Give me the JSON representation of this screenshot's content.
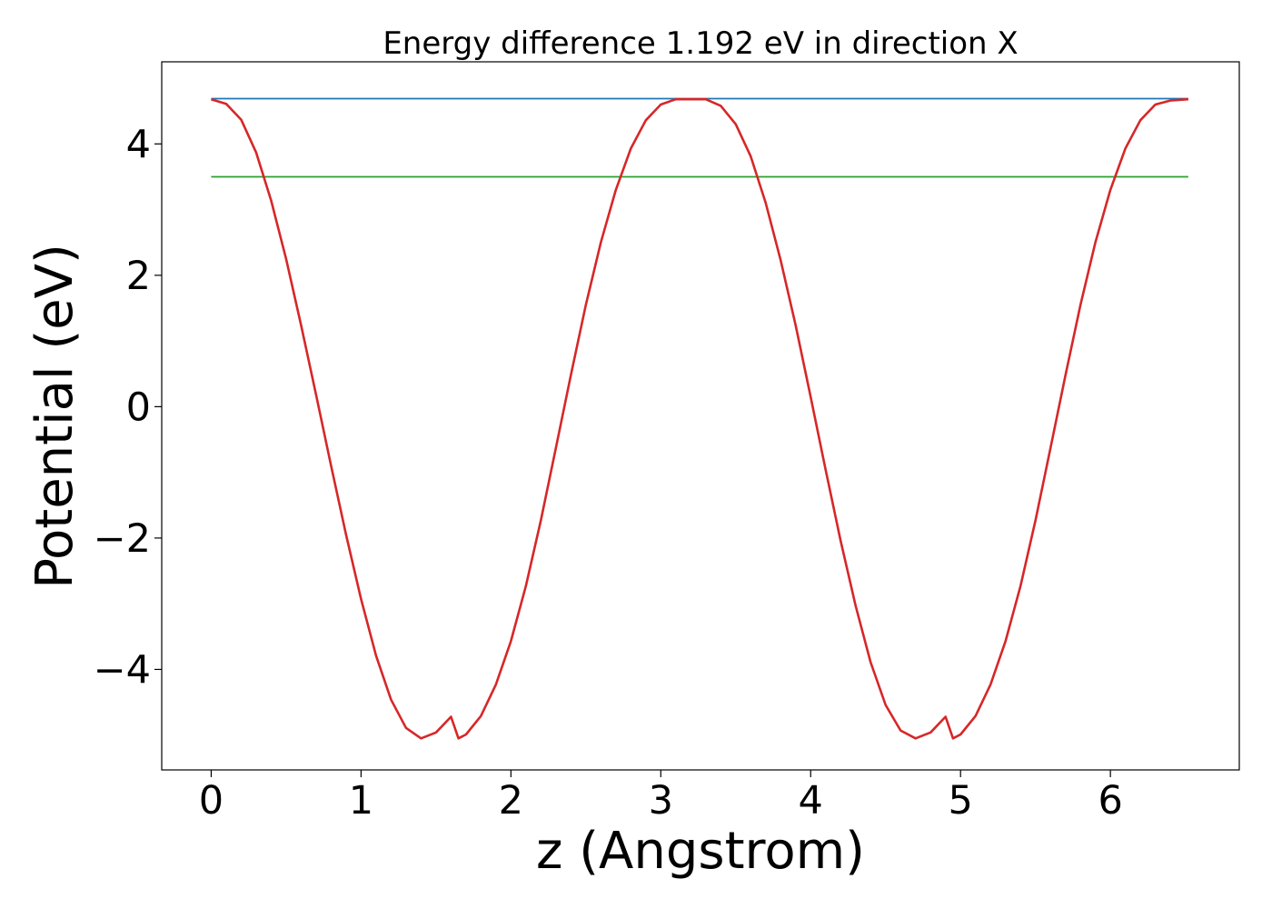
{
  "chart_data": {
    "type": "line",
    "title": "Energy difference 1.192 eV in direction X",
    "xlabel": "z (Angstrom)",
    "ylabel": "Potential (eV)",
    "xlim": [
      -0.33,
      6.86
    ],
    "ylim": [
      -5.53,
      5.25
    ],
    "xticks": [
      0,
      1,
      2,
      3,
      4,
      5,
      6
    ],
    "xtick_labels": [
      "0",
      "1",
      "2",
      "3",
      "4",
      "5",
      "6"
    ],
    "yticks": [
      -4,
      -2,
      0,
      2,
      4
    ],
    "ytick_labels": [
      "−4",
      "−2",
      "0",
      "2",
      "4"
    ],
    "grid": false,
    "series": [
      {
        "color": "#d62728",
        "x": [
          0,
          0.1,
          0.2,
          0.3,
          0.4,
          0.5,
          0.6,
          0.7,
          0.8,
          0.9,
          1.0,
          1.1,
          1.2,
          1.3,
          1.4,
          1.5,
          1.6,
          1.65,
          1.7,
          1.8,
          1.9,
          2.0,
          2.1,
          2.2,
          2.3,
          2.4,
          2.5,
          2.6,
          2.7,
          2.8,
          2.9,
          3.0,
          3.1,
          3.2,
          3.3,
          3.4,
          3.5,
          3.6,
          3.7,
          3.8,
          3.9,
          4.0,
          4.1,
          4.2,
          4.3,
          4.4,
          4.5,
          4.6,
          4.7,
          4.8,
          4.9,
          4.95,
          5.0,
          5.1,
          5.2,
          5.3,
          5.4,
          5.5,
          5.6,
          5.7,
          5.8,
          5.9,
          6.0,
          6.1,
          6.2,
          6.3,
          6.4,
          6.52
        ],
        "y": [
          4.68,
          4.61,
          4.37,
          3.87,
          3.14,
          2.25,
          1.24,
          0.18,
          -0.9,
          -1.95,
          -2.93,
          -3.79,
          -4.46,
          -4.89,
          -5.05,
          -4.96,
          -4.72,
          -5.05,
          -4.99,
          -4.71,
          -4.23,
          -3.57,
          -2.73,
          -1.73,
          -0.63,
          0.48,
          1.55,
          2.5,
          3.3,
          3.93,
          4.36,
          4.6,
          4.68,
          4.68,
          4.68,
          4.58,
          4.3,
          3.81,
          3.1,
          2.23,
          1.24,
          0.15,
          -0.96,
          -2.04,
          -3.03,
          -3.89,
          -4.54,
          -4.93,
          -5.05,
          -4.96,
          -4.72,
          -5.05,
          -4.99,
          -4.71,
          -4.23,
          -3.57,
          -2.73,
          -1.73,
          -0.63,
          0.48,
          1.55,
          2.5,
          3.3,
          3.93,
          4.36,
          4.6,
          4.66,
          4.68
        ]
      },
      {
        "color": "#1f77b4",
        "x": [
          0,
          6.52
        ],
        "y": [
          4.69,
          4.69
        ]
      },
      {
        "color": "#2ca02c",
        "x": [
          0,
          6.52
        ],
        "y": [
          3.5,
          3.5
        ]
      }
    ]
  }
}
